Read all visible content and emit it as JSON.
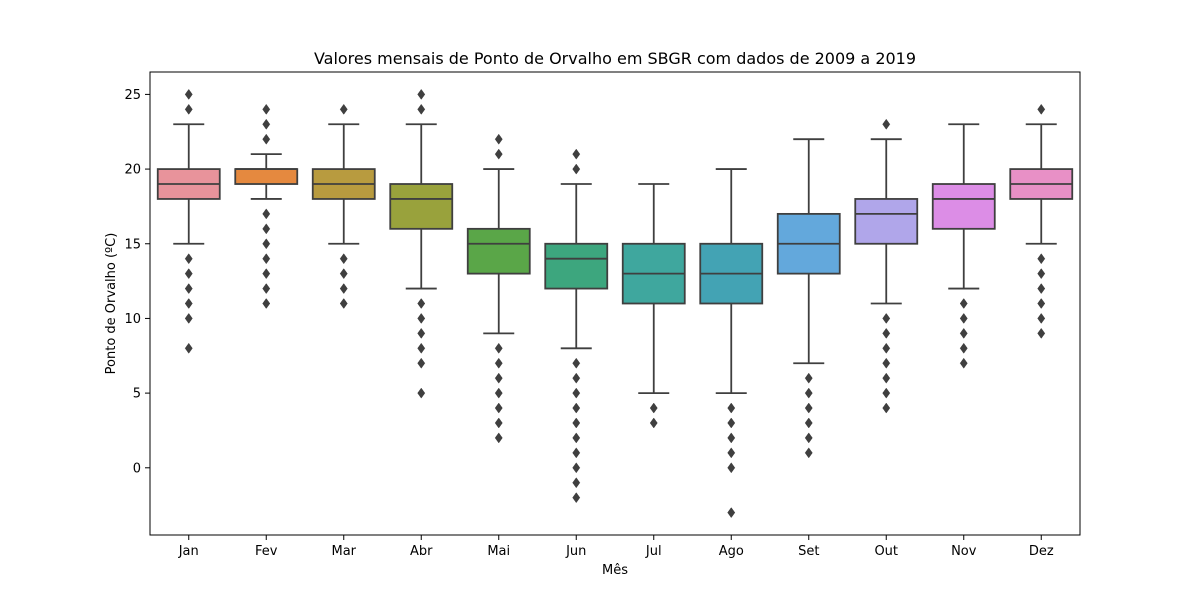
{
  "chart_data": {
    "type": "boxplot",
    "title": "Valores mensais de Ponto de Orvalho em SBGR com dados de 2009 a 2019",
    "xlabel": "Mês",
    "ylabel": "Ponto de Orvalho (ºC)",
    "ylim": [
      -4.5,
      26.5
    ],
    "yticks": [
      0,
      5,
      10,
      15,
      20,
      25
    ],
    "grid": false,
    "categories": [
      "Jan",
      "Fev",
      "Mar",
      "Abr",
      "Mai",
      "Jun",
      "Jul",
      "Ago",
      "Set",
      "Out",
      "Nov",
      "Dez"
    ],
    "boxes": [
      {
        "category": "Jan",
        "color": "#e8939b",
        "whislo": 15,
        "q1": 18,
        "med": 19,
        "q3": 20,
        "whishi": 23,
        "fliers": [
          8,
          10,
          11,
          12,
          13,
          14,
          24,
          25
        ]
      },
      {
        "category": "Fev",
        "color": "#e5893f",
        "whislo": 18,
        "q1": 19,
        "med": 20,
        "q3": 20,
        "whishi": 21,
        "fliers": [
          11,
          12,
          13,
          14,
          15,
          16,
          17,
          22,
          23,
          24
        ]
      },
      {
        "category": "Mar",
        "color": "#b89b3f",
        "whislo": 15,
        "q1": 18,
        "med": 19,
        "q3": 20,
        "whishi": 23,
        "fliers": [
          11,
          12,
          13,
          14,
          24
        ]
      },
      {
        "category": "Abr",
        "color": "#99a23c",
        "whislo": 12,
        "q1": 16,
        "med": 18,
        "q3": 19,
        "whishi": 23,
        "fliers": [
          5,
          7,
          8,
          9,
          10,
          11,
          24,
          25
        ]
      },
      {
        "category": "Mai",
        "color": "#5aa648",
        "whislo": 9,
        "q1": 13,
        "med": 15,
        "q3": 16,
        "whishi": 20,
        "fliers": [
          2,
          3,
          4,
          5,
          6,
          7,
          8,
          21,
          22
        ]
      },
      {
        "category": "Jun",
        "color": "#3da67e",
        "whislo": 8,
        "q1": 12,
        "med": 14,
        "q3": 15,
        "whishi": 19,
        "fliers": [
          -2,
          -1,
          0,
          1,
          2,
          3,
          4,
          5,
          6,
          7,
          20,
          21
        ]
      },
      {
        "category": "Jul",
        "color": "#3fa79e",
        "whislo": 5,
        "q1": 11,
        "med": 13,
        "q3": 15,
        "whishi": 19,
        "fliers": [
          3,
          4
        ]
      },
      {
        "category": "Ago",
        "color": "#43a3b4",
        "whislo": 5,
        "q1": 11,
        "med": 13,
        "q3": 15,
        "whishi": 20,
        "fliers": [
          -3,
          0,
          1,
          2,
          3,
          4
        ]
      },
      {
        "category": "Set",
        "color": "#63a8dc",
        "whislo": 7,
        "q1": 13,
        "med": 15,
        "q3": 17,
        "whishi": 22,
        "fliers": [
          1,
          2,
          3,
          4,
          5,
          6
        ]
      },
      {
        "category": "Out",
        "color": "#b0a6ea",
        "whislo": 11,
        "q1": 15,
        "med": 17,
        "q3": 18,
        "whishi": 22,
        "fliers": [
          4,
          5,
          6,
          7,
          8,
          9,
          10,
          23
        ]
      },
      {
        "category": "Nov",
        "color": "#dc8de6",
        "whislo": 12,
        "q1": 16,
        "med": 18,
        "q3": 19,
        "whishi": 23,
        "fliers": [
          7,
          8,
          9,
          10,
          11
        ]
      },
      {
        "category": "Dez",
        "color": "#e890c6",
        "whislo": 15,
        "q1": 18,
        "med": 19,
        "q3": 20,
        "whishi": 23,
        "fliers": [
          9,
          10,
          11,
          12,
          13,
          14,
          24
        ]
      }
    ]
  }
}
